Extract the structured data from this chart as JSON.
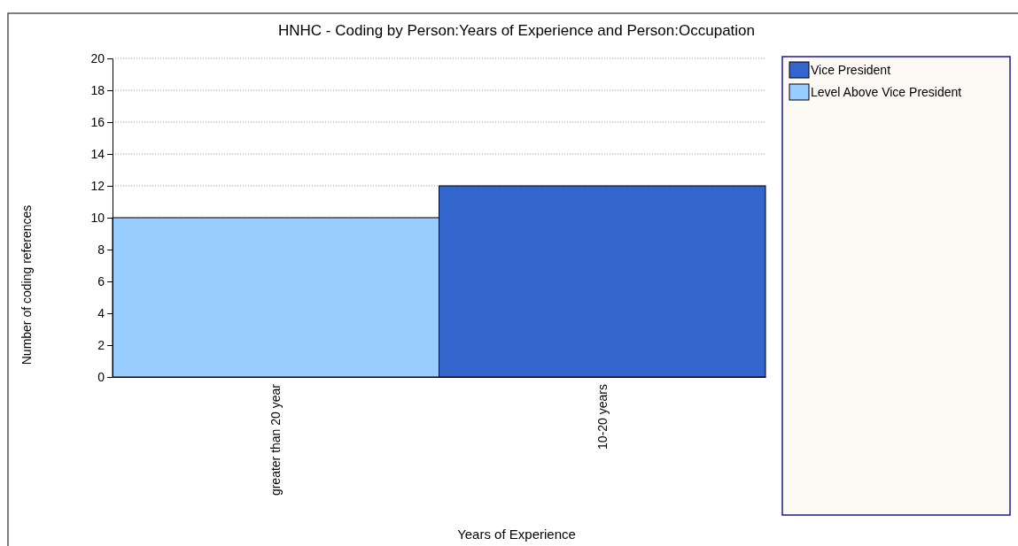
{
  "chart_data": {
    "type": "bar",
    "title": "HNHC - Coding by Person:Years of Experience and Person:Occupation",
    "xlabel": "Years of Experience",
    "ylabel": "Number of coding references",
    "categories": [
      "greater than 20 year",
      "10-20 years"
    ],
    "series": [
      {
        "name": "Vice President",
        "color": "#3366cc",
        "values": [
          null,
          12
        ]
      },
      {
        "name": "Level Above Vice President",
        "color": "#99ccff",
        "values": [
          10,
          null
        ]
      }
    ],
    "stacked": true,
    "ylim": [
      0,
      20
    ],
    "yticks": [
      0,
      2,
      4,
      6,
      8,
      10,
      12,
      14,
      16,
      18,
      20
    ],
    "grid": "y",
    "legend": "right"
  }
}
